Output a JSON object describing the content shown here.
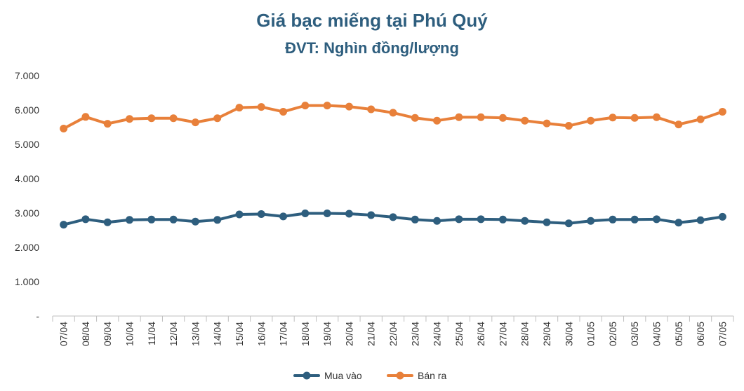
{
  "chart_data": {
    "type": "line",
    "title": "Giá bạc miếng tại Phú Quý",
    "subtitle": "ĐVT: Nghìn đồng/lượng",
    "categories": [
      "07/04",
      "08/04",
      "09/04",
      "10/04",
      "11/04",
      "12/04",
      "13/04",
      "14/04",
      "15/04",
      "16/04",
      "17/04",
      "18/04",
      "19/04",
      "20/04",
      "21/04",
      "22/04",
      "23/04",
      "24/04",
      "25/04",
      "26/04",
      "27/04",
      "28/04",
      "29/04",
      "30/04",
      "01/05",
      "02/05",
      "03/05",
      "04/05",
      "05/05",
      "06/05",
      "07/05"
    ],
    "y_tick_labels": [
      "-",
      "1.000",
      "2.000",
      "3.000",
      "4.000",
      "5.000",
      "6.000",
      "7.000"
    ],
    "ylim": [
      0,
      7000
    ],
    "grid": false,
    "legend_position": "bottom",
    "series": [
      {
        "name": "Mua vào",
        "color": "#2E5E7E",
        "values": [
          2660,
          2820,
          2730,
          2800,
          2810,
          2810,
          2750,
          2800,
          2960,
          2970,
          2900,
          2990,
          2990,
          2980,
          2940,
          2880,
          2810,
          2770,
          2820,
          2820,
          2810,
          2770,
          2730,
          2700,
          2770,
          2810,
          2810,
          2820,
          2720,
          2790,
          2890
        ]
      },
      {
        "name": "Bán ra",
        "color": "#E8803A",
        "values": [
          5460,
          5800,
          5600,
          5740,
          5760,
          5760,
          5640,
          5760,
          6070,
          6090,
          5950,
          6130,
          6130,
          6100,
          6020,
          5920,
          5770,
          5690,
          5790,
          5790,
          5770,
          5690,
          5610,
          5540,
          5690,
          5780,
          5770,
          5790,
          5580,
          5730,
          5950
        ]
      }
    ]
  }
}
